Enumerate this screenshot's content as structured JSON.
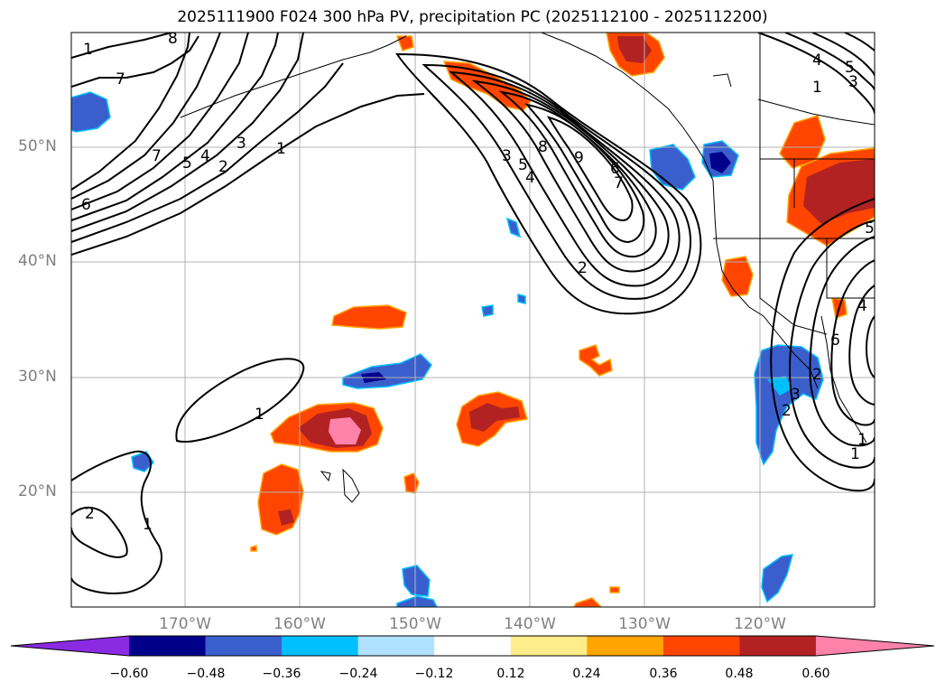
{
  "title": "2025111900 F024 300 hPa PV, precipitation PC (2025112100 - 2025112200)",
  "map": {
    "lat_labels": [
      "50°N",
      "40°N",
      "30°N",
      "20°N"
    ],
    "lon_labels": [
      "170°W",
      "160°W",
      "150°W",
      "140°W",
      "130°W",
      "120°W"
    ],
    "contour_labels": [
      "1",
      "7",
      "8",
      "7",
      "5",
      "4",
      "3",
      "2",
      "1",
      "6",
      "3",
      "5",
      "4",
      "8",
      "9",
      "6",
      "7",
      "2",
      "1",
      "1",
      "2",
      "3",
      "4",
      "5",
      "6",
      "3",
      "2",
      "1",
      "5",
      "4",
      "1",
      "1",
      "2"
    ]
  },
  "colorbar": {
    "ticks": [
      "−0.60",
      "−0.48",
      "−0.36",
      "−0.24",
      "−0.12",
      "0.12",
      "0.24",
      "0.36",
      "0.48",
      "0.60"
    ],
    "colors": [
      "#8a2be2",
      "#00008b",
      "#3a5fcd",
      "#00bfff",
      "#b0e2ff",
      "#ffffff",
      "#ffec8b",
      "#ffa500",
      "#ff4500",
      "#b22222",
      "#ff82ab"
    ]
  }
}
